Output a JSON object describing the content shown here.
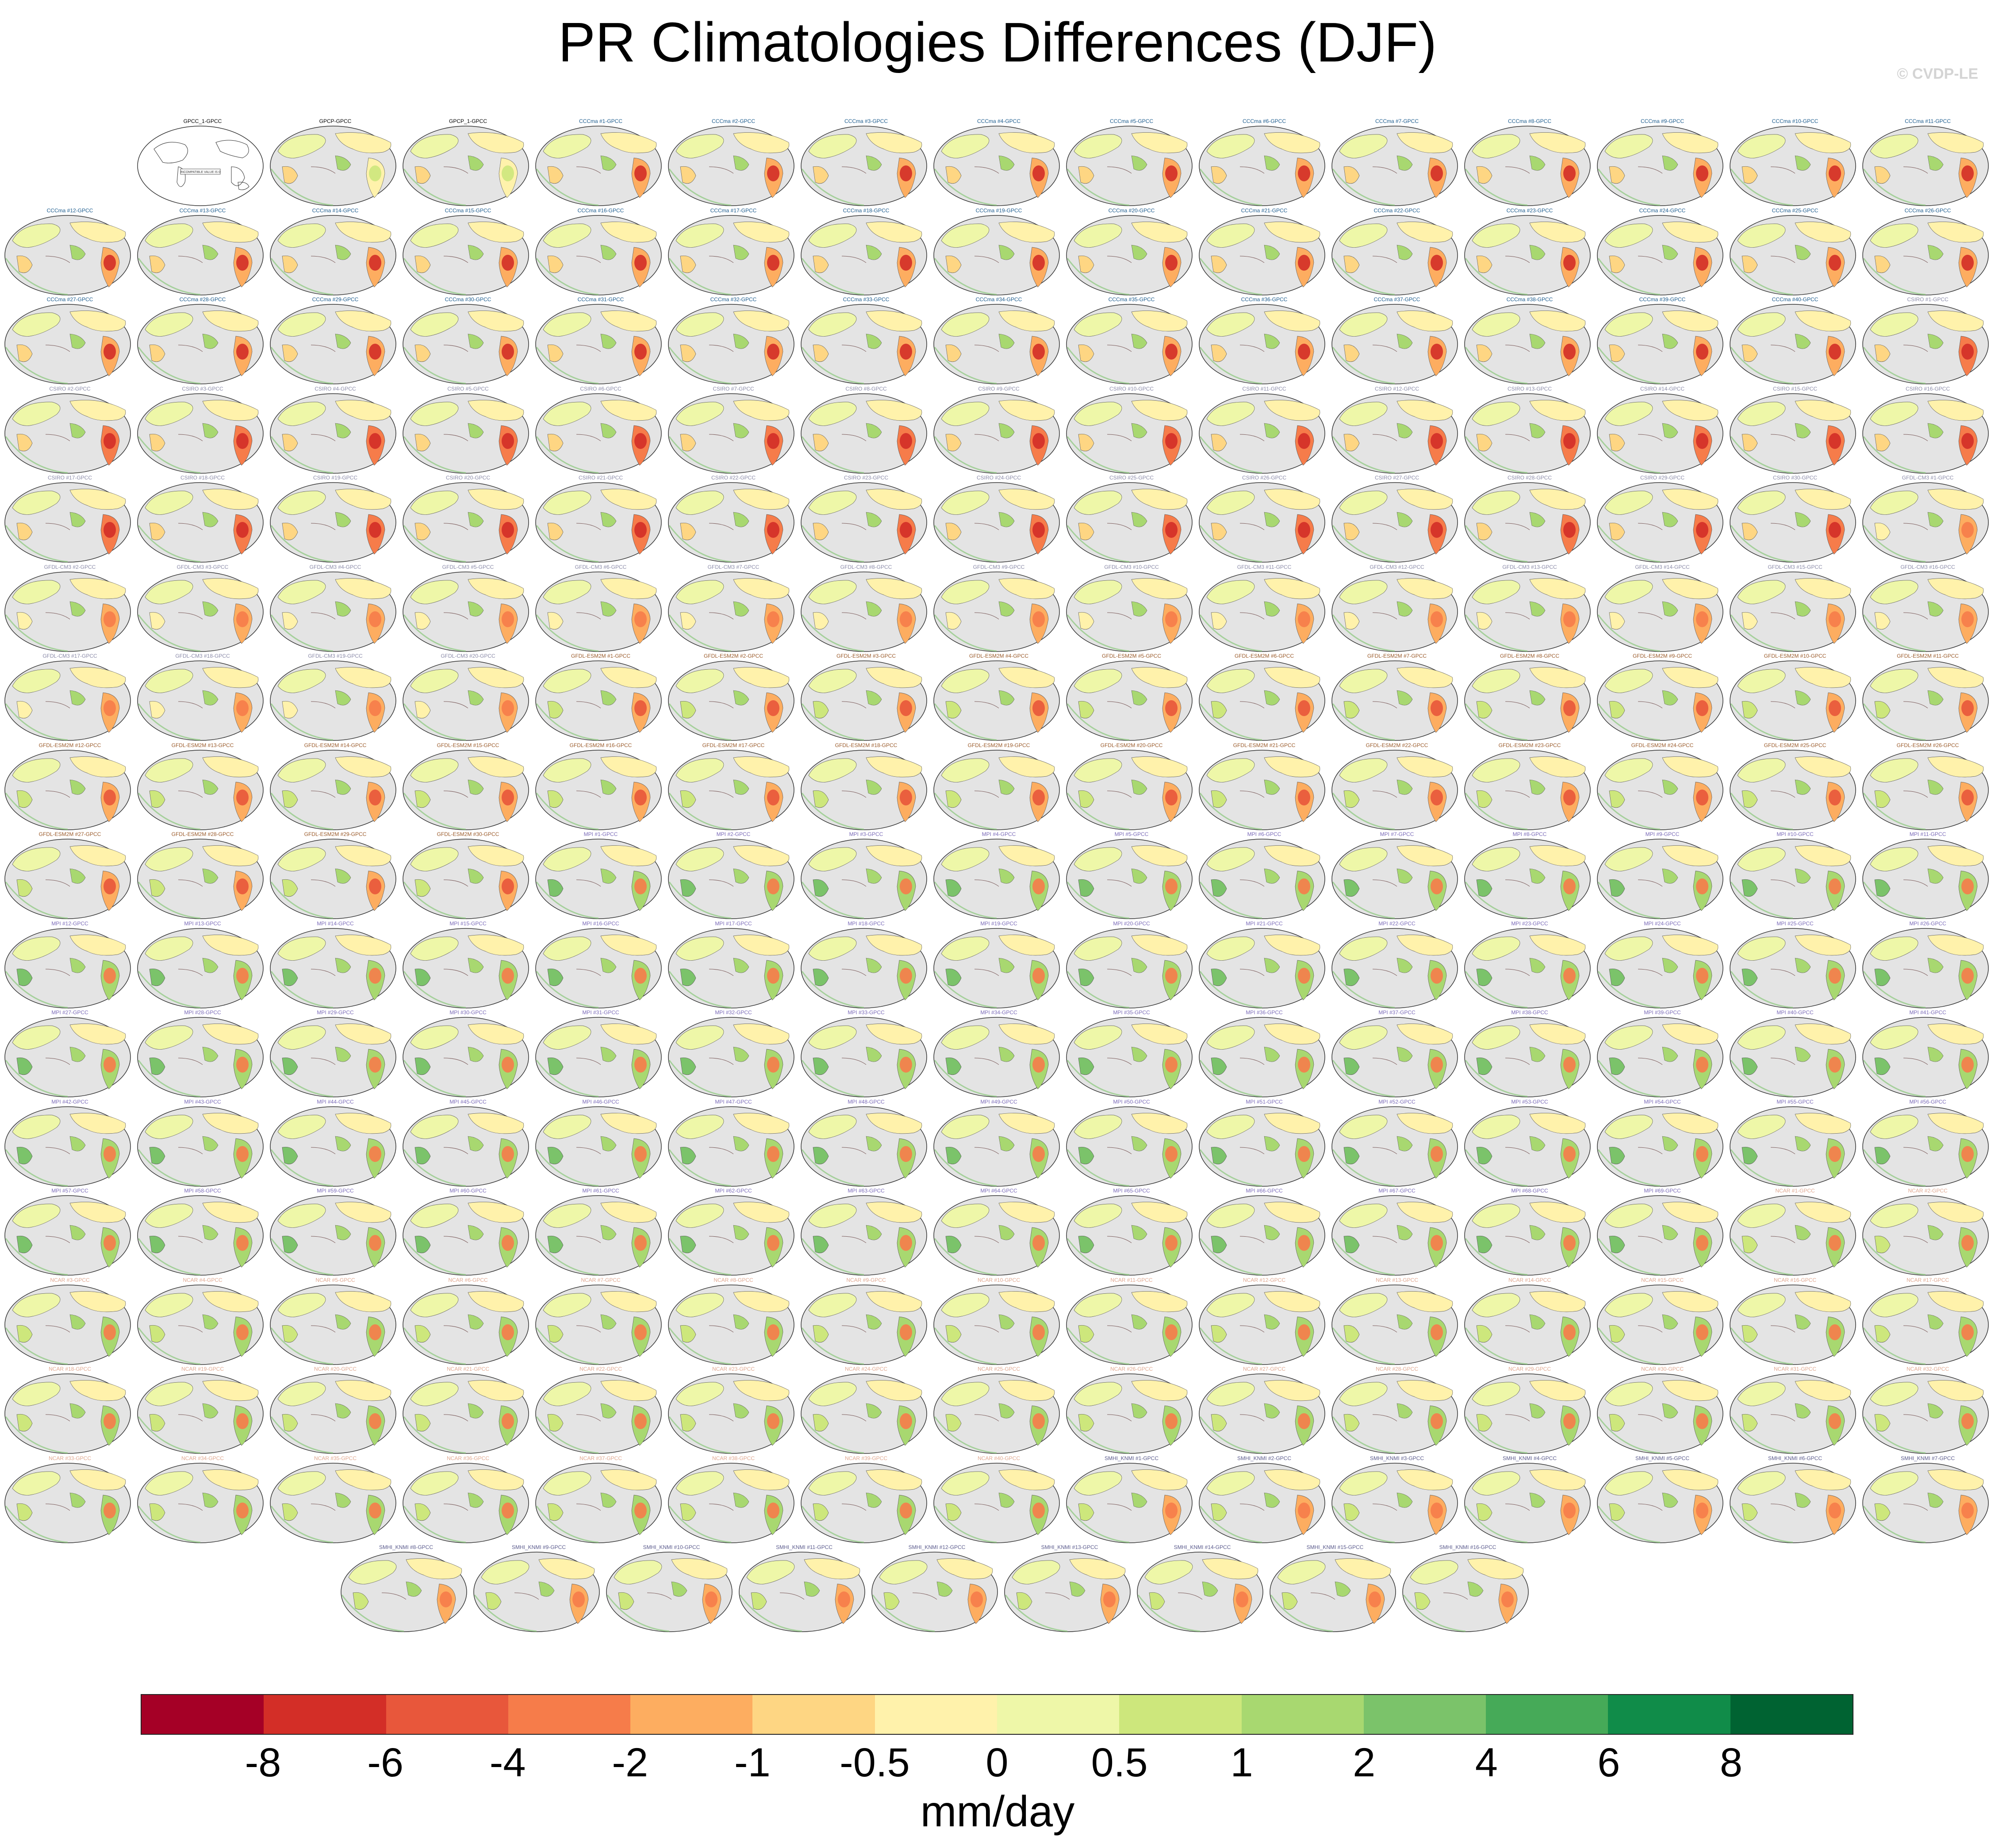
{
  "title": "PR Climatologies Differences (DJF)",
  "copyright": "© CVDP-LE",
  "units": "mm/day",
  "colorbar": {
    "colors": [
      "#a50026",
      "#d32e27",
      "#e8573b",
      "#f67c4a",
      "#fdad60",
      "#fed683",
      "#fff2ab",
      "#eef7a8",
      "#cde77c",
      "#a8d870",
      "#7bc36a",
      "#46aa58",
      "#108c49",
      "#006332"
    ],
    "labels": [
      "-8",
      "-6",
      "-4",
      "-2",
      "-1",
      "-0.5",
      "0",
      "0.5",
      "1",
      "2",
      "4",
      "6",
      "8"
    ]
  },
  "panel_groups": [
    {
      "prefix": "CCCma #",
      "count": 40,
      "title_color": "#1a5a8c"
    },
    {
      "prefix": "CSIRO #",
      "count": 30,
      "title_color": "#8a8aa8"
    },
    {
      "prefix": "GFDL-CM3 #",
      "count": 20,
      "title_color": "#8a8aa8"
    },
    {
      "prefix": "GFDL-ESM2M #",
      "count": 30,
      "title_color": "#9a5a2a"
    },
    {
      "prefix": "MPI #",
      "count": 69,
      "title_color": "#7a6ab8"
    },
    {
      "prefix": "NCAR #",
      "count": 40,
      "title_color": "#e0a890"
    },
    {
      "prefix": "SMHI_KNMI #",
      "count": 16,
      "title_color": "#5a5a8c"
    }
  ],
  "lead_panels": [
    {
      "title": "GPCC_1-GPCC",
      "empty": true,
      "annotation": "INCOMPATIBLE VALUE IS 0",
      "title_color": "#000000"
    },
    {
      "title": "GPCP-GPCC",
      "empty": false,
      "title_color": "#000000"
    },
    {
      "title": "GPCP_1-GPCC",
      "empty": false,
      "title_color": "#000000"
    }
  ],
  "panel_suffix": "-GPCC"
}
